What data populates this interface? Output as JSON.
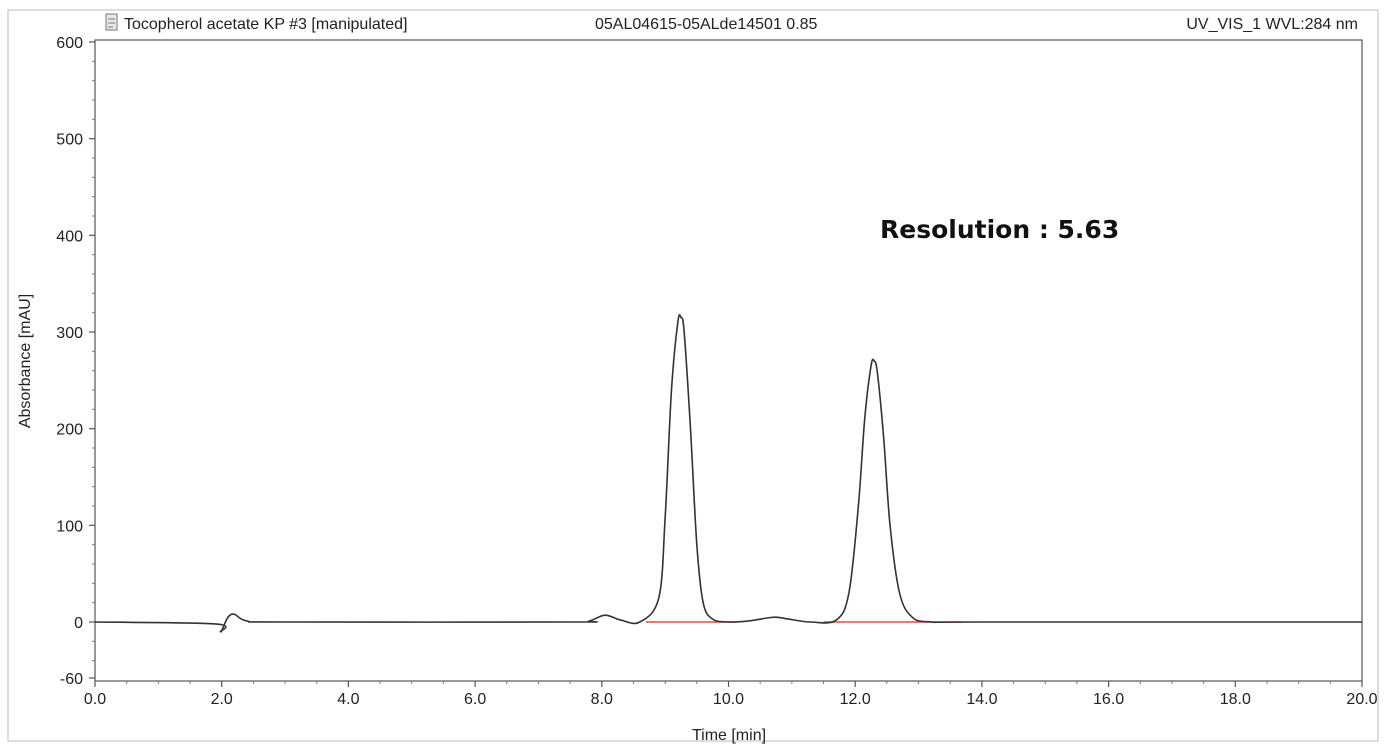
{
  "header": {
    "sample": "Tocopherol acetate KP #3 [manipulated]",
    "sequence": "05AL04615-05ALde14501 0.85",
    "channel": "UV_VIS_1 WVL:284 nm",
    "icon": "document-icon"
  },
  "chart_data": {
    "type": "line",
    "xlabel": "Time [min]",
    "ylabel": "Absorbance [mAU]",
    "xlim": [
      0,
      20
    ],
    "ylim": [
      -60,
      600
    ],
    "xticks": [
      "0.0",
      "2.0",
      "4.0",
      "6.0",
      "8.0",
      "10.0",
      "12.0",
      "14.0",
      "16.0",
      "18.0",
      "20.0"
    ],
    "yticks": [
      "-60",
      "0",
      "100",
      "200",
      "300",
      "400",
      "500",
      "600"
    ],
    "grid": false,
    "annotation": "Resolution : 5.63",
    "colors": {
      "trace": "#333333",
      "baseline": "#ff4444",
      "frame": "#555555"
    },
    "series": [
      {
        "x": [
          0.0,
          1.9,
          1.98,
          2.02,
          2.1,
          2.2,
          2.4,
          3.0,
          7.5,
          7.8,
          8.05,
          8.3,
          8.6,
          8.9,
          9.0,
          9.1,
          9.2,
          9.25,
          9.3,
          9.4,
          9.5,
          9.6,
          9.75,
          10.0,
          10.3,
          10.6,
          10.75,
          10.95,
          11.3,
          11.7,
          11.9,
          12.05,
          12.15,
          12.25,
          12.3,
          12.35,
          12.45,
          12.55,
          12.7,
          12.9,
          13.2,
          14.0,
          20.0
        ],
        "y": [
          0,
          -2,
          -10,
          -6,
          5,
          8,
          1,
          0,
          0,
          1,
          7,
          2,
          0,
          25,
          108,
          240,
          310,
          315,
          300,
          200,
          80,
          20,
          3,
          0,
          1,
          4,
          5,
          3,
          0,
          2,
          30,
          120,
          210,
          265,
          270,
          258,
          190,
          100,
          30,
          5,
          0,
          0,
          0
        ]
      }
    ],
    "baselines": [
      {
        "x": [
          8.7,
          10.1
        ]
      },
      {
        "x": [
          11.5,
          13.7
        ]
      }
    ]
  }
}
